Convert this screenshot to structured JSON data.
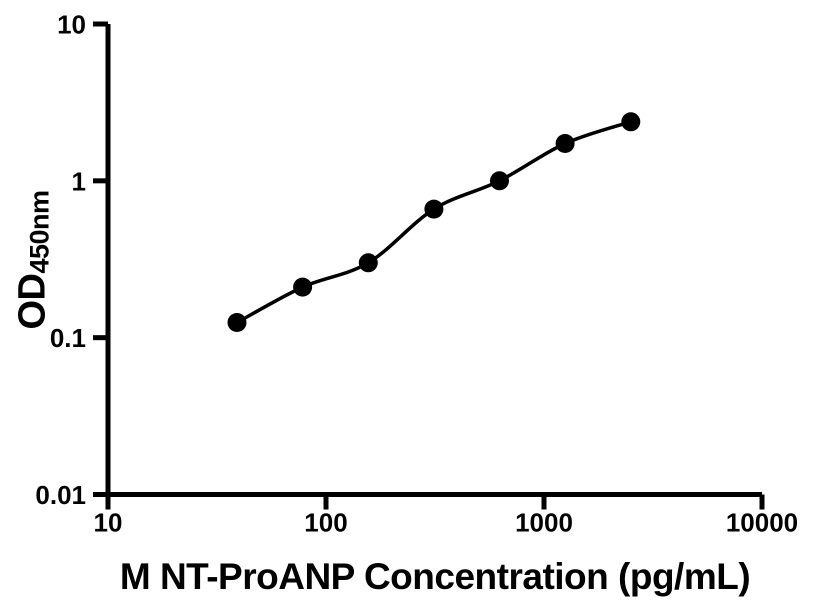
{
  "page": {
    "background": "#ffffff",
    "foreground": "#000000"
  },
  "chart_data": {
    "type": "scatter",
    "subtype": "elisa-standard-curve-with-fit-line",
    "title": "",
    "xlabel": "M NT-ProANP Concentration (pg/mL)",
    "ylabel": "OD",
    "ylabel_subscript": "450nm",
    "x": [
      39.06,
      78.13,
      156.25,
      312.5,
      625,
      1250,
      2500
    ],
    "y": [
      0.125,
      0.21,
      0.3,
      0.66,
      1.0,
      1.73,
      2.38
    ],
    "x_scale": "log",
    "y_scale": "log",
    "xlim": [
      10,
      10000
    ],
    "ylim": [
      0.01,
      10
    ],
    "x_ticks": [
      10,
      100,
      1000,
      10000
    ],
    "y_ticks": [
      10,
      1,
      0.1,
      0.01
    ],
    "x_tick_labels": [
      "10",
      "100",
      "1000",
      "10000"
    ],
    "y_tick_labels": [
      "10",
      "1",
      "0.1",
      "0.01"
    ],
    "grid": false,
    "legend": "none",
    "marker_color": "#000000",
    "line_color": "#000000",
    "axis_color": "#000000"
  }
}
